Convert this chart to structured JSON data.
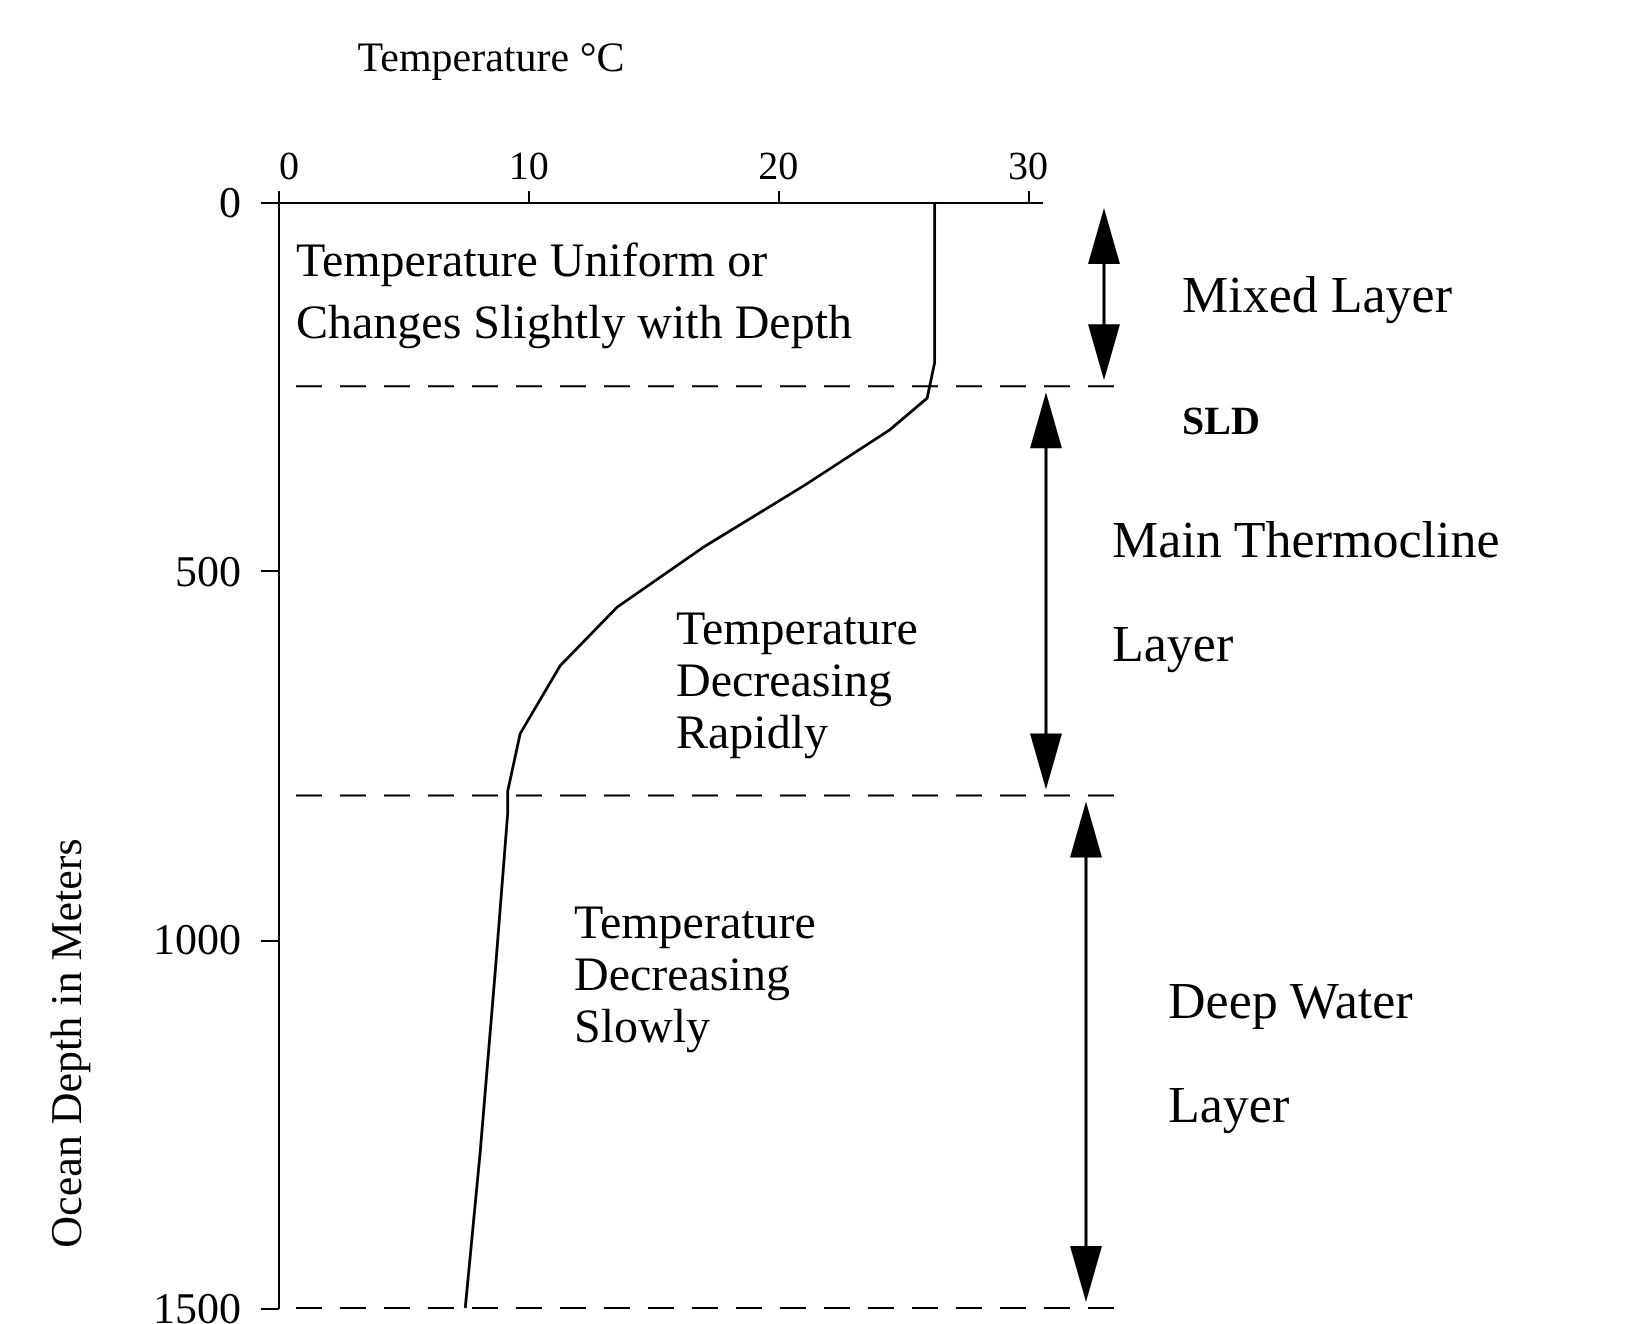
{
  "chart_data": {
    "type": "line",
    "xlabel": "Temperature °C",
    "ylabel": "Ocean Depth in Meters",
    "x": [
      26.3,
      26.3,
      26.0,
      24.5,
      21.1,
      17.0,
      13.6,
      11.3,
      9.7,
      9.2,
      9.2,
      8.7,
      8.1,
      7.5
    ],
    "series": [
      {
        "color": "#000000",
        "values": [
          0,
          218,
          266,
          309,
          384,
          469,
          549,
          629,
          721,
          799,
          829,
          1044,
          1288,
          1500
        ]
      }
    ],
    "xlim": [
      0,
      30.6
    ],
    "xticks": [
      0,
      10,
      20,
      30
    ],
    "ylim": [
      1500,
      0
    ],
    "yticks": [
      0,
      500,
      1000,
      1500
    ],
    "ref_lines": [
      {
        "axis": "y",
        "value": 250,
        "label": "SLD",
        "line_style": "dashed"
      },
      {
        "axis": "y",
        "value": 805,
        "line_style": "dashed"
      },
      {
        "axis": "y",
        "value": 1500,
        "line_style": "dashed"
      }
    ],
    "annotations": [
      "Temperature Uniform or\nChanges Slightly with Depth",
      "Temperature\nDecreasing\nRapidly",
      "Temperature\nDecreasing\nSlowly",
      "Mixed Layer",
      "Main Thermocline\nLayer",
      "Deep   Water\nLayer"
    ]
  }
}
